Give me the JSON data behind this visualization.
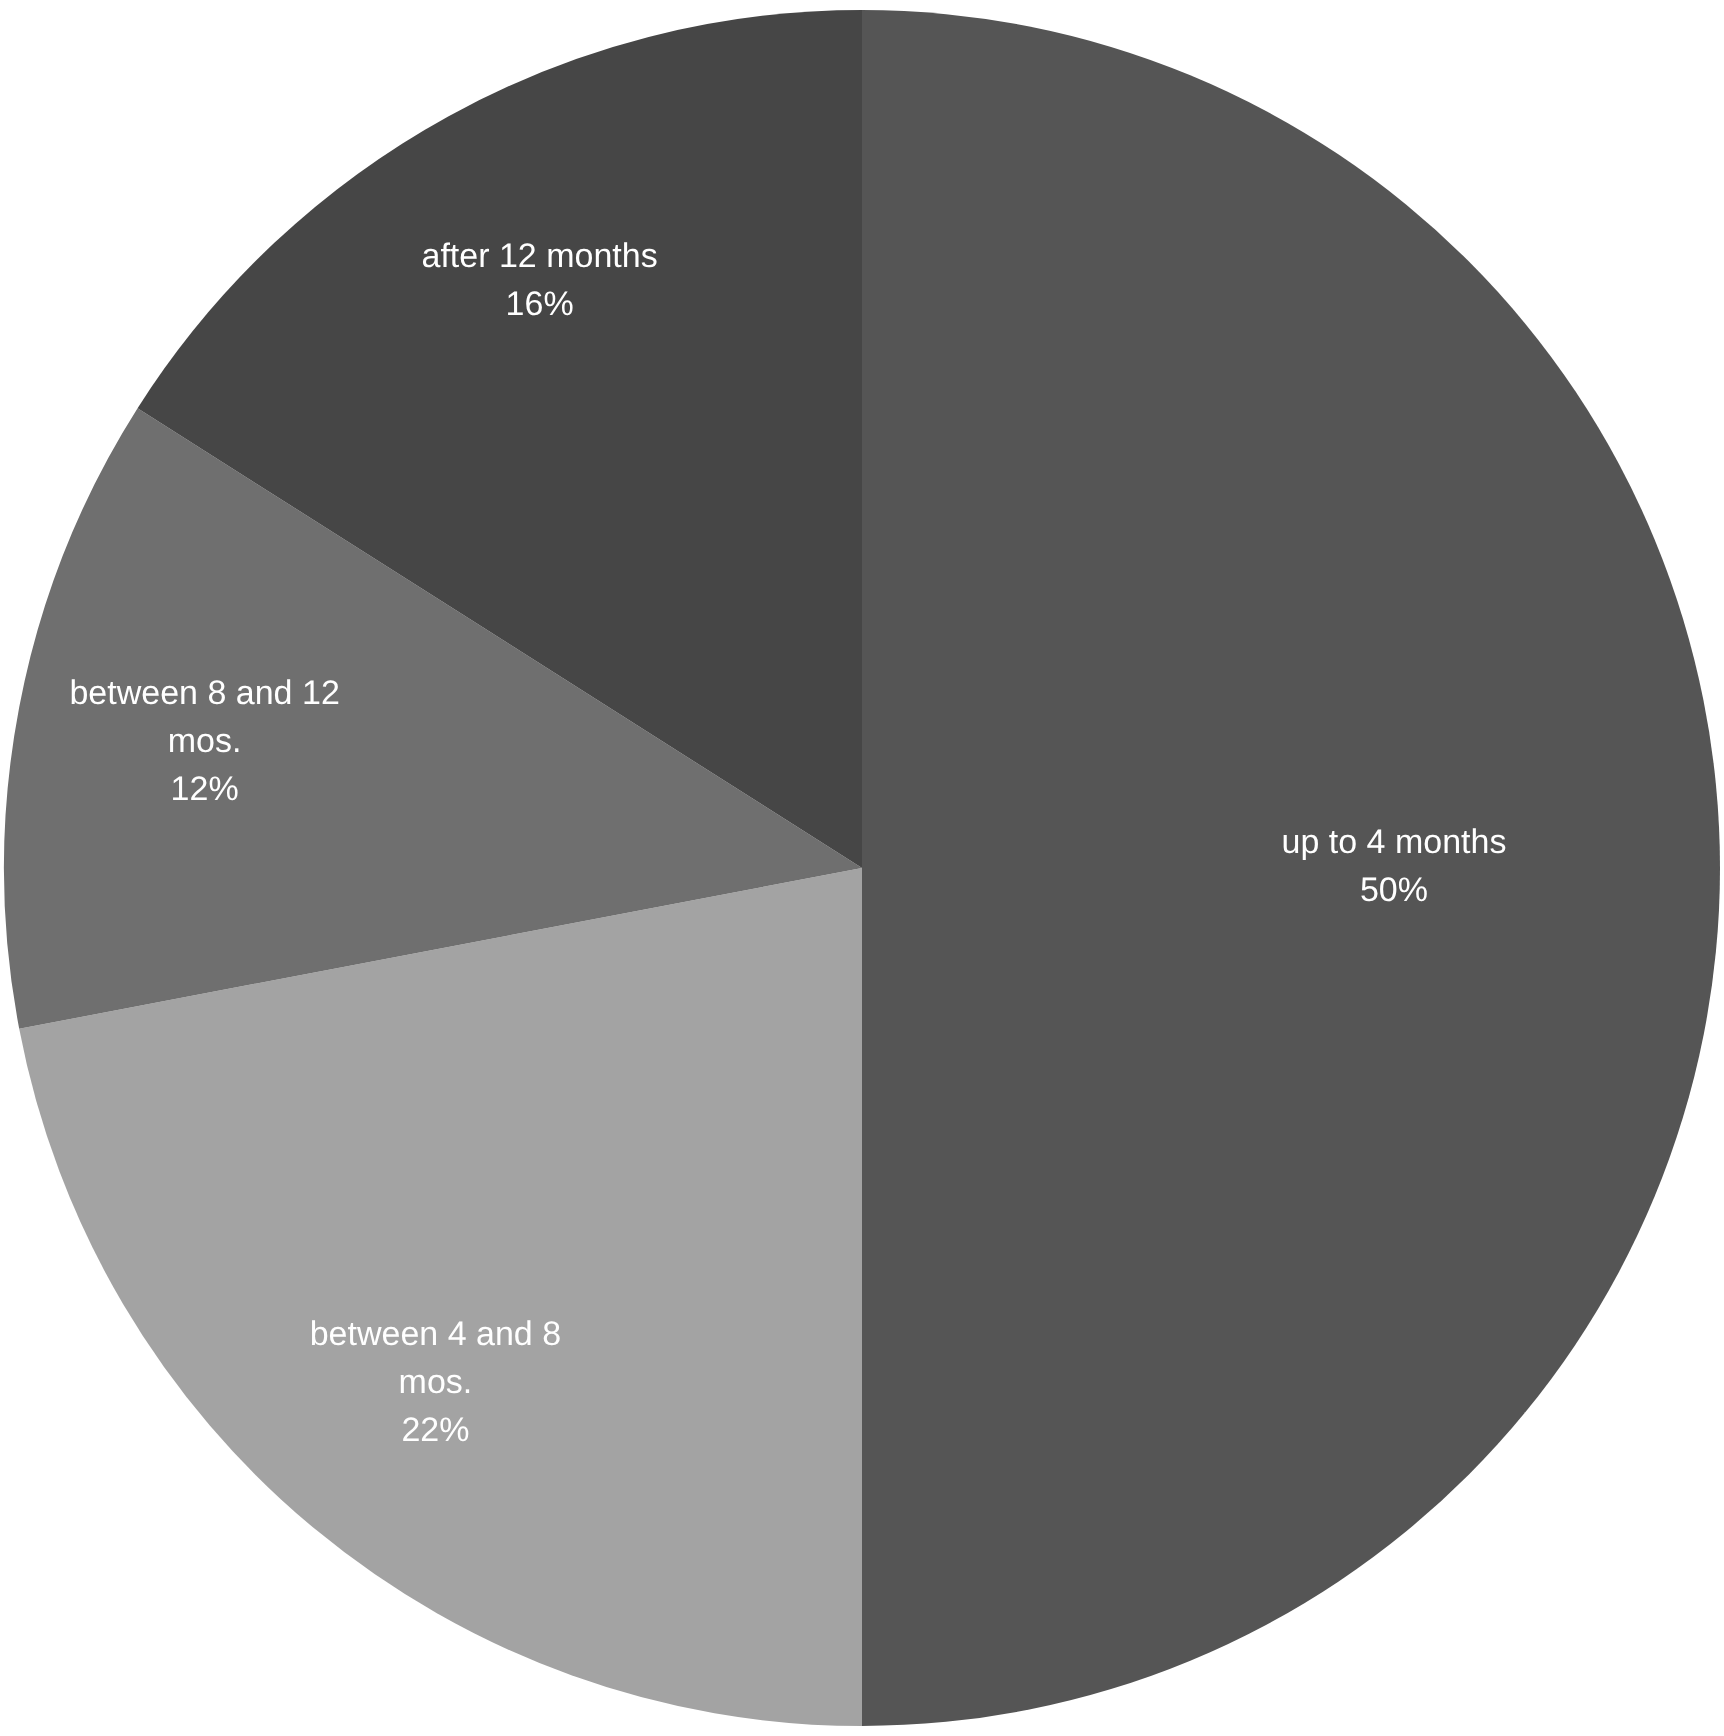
{
  "chart_data": {
    "type": "pie",
    "categories": [
      "up to 4 months",
      "between 4 and 8 mos.",
      "between 8 and 12 mos.",
      "after 12 months"
    ],
    "values": [
      50,
      22,
      12,
      16
    ],
    "colors": [
      "#555555",
      "#a3a3a3",
      "#6f6f6f",
      "#464646"
    ],
    "value_labels": [
      "50%",
      "22%",
      "12%",
      "16%"
    ],
    "legend": false
  }
}
